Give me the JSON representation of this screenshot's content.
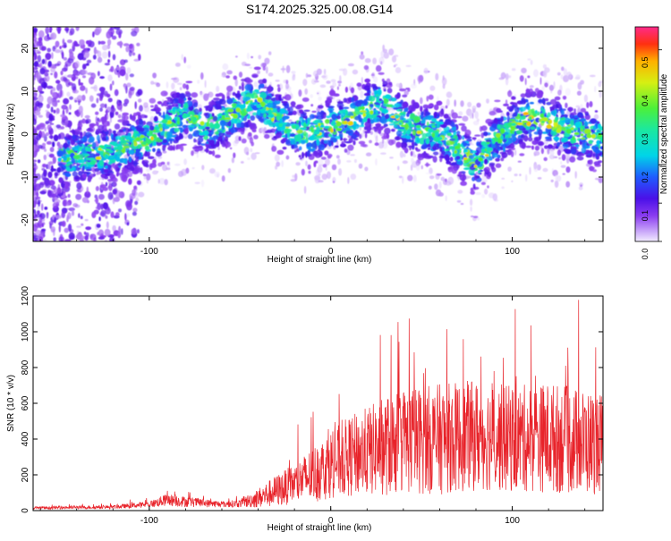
{
  "figure_title": "S174.2025.325.00.08.G14",
  "chart_data": [
    {
      "type": "heatmap",
      "xlabel": "Height of straight line (km)",
      "ylabel": "Frequency (Hz)",
      "xlim": [
        -164,
        150
      ],
      "ylim": [
        -25,
        25
      ],
      "xticks": [
        -100,
        0,
        100
      ],
      "yticks": [
        -20,
        -10,
        0,
        10,
        20
      ],
      "colorbar": {
        "label": "Normalized spectral amplitude",
        "range": [
          0,
          0.56
        ],
        "ticks": [
          0,
          0.1,
          0.2,
          0.3,
          0.4,
          0.5
        ],
        "tick_labels": [
          "0.0",
          "0.1",
          "0.2",
          "0.3",
          "0.4",
          "0.5"
        ]
      },
      "ridge_frequency_trend": {
        "x": [
          -160,
          -140,
          -120,
          -100,
          -80,
          -70,
          -60,
          -50,
          -40,
          -30,
          -20,
          -10,
          0,
          10,
          20,
          30,
          40,
          50,
          60,
          70,
          80,
          90,
          100,
          110,
          120,
          130,
          140,
          150
        ],
        "y": [
          -7,
          -5,
          -4,
          -1,
          5,
          1,
          3,
          6,
          8,
          4,
          1,
          0,
          2,
          3,
          6,
          7,
          3,
          1,
          0,
          -3,
          -7,
          -2,
          2,
          4,
          3,
          1,
          0,
          -1
        ]
      }
    },
    {
      "type": "line",
      "xlabel": "Height of straight line (km)",
      "ylabel": "SNR (10 * v/v)",
      "xlim": [
        -164,
        150
      ],
      "ylim": [
        0,
        1200
      ],
      "xticks": [
        -100,
        0,
        100
      ],
      "yticks": [
        0,
        200,
        400,
        600,
        800,
        1000,
        1200
      ],
      "series": [
        {
          "name": "SNR",
          "color": "#e8232a",
          "envelope_x": [
            -164,
            -120,
            -100,
            -90,
            -80,
            -60,
            -50,
            -40,
            -30,
            -20,
            -10,
            0,
            10,
            20,
            30,
            40,
            60,
            80,
            100,
            120,
            140,
            150
          ],
          "envelope_mean": [
            15,
            20,
            35,
            60,
            50,
            35,
            40,
            70,
            110,
            150,
            200,
            260,
            300,
            330,
            360,
            390,
            400,
            420,
            400,
            410,
            380,
            380
          ],
          "envelope_spread": [
            15,
            20,
            35,
            70,
            60,
            35,
            45,
            110,
            180,
            220,
            320,
            380,
            450,
            500,
            560,
            600,
            620,
            620,
            600,
            620,
            600,
            560
          ]
        }
      ]
    }
  ]
}
